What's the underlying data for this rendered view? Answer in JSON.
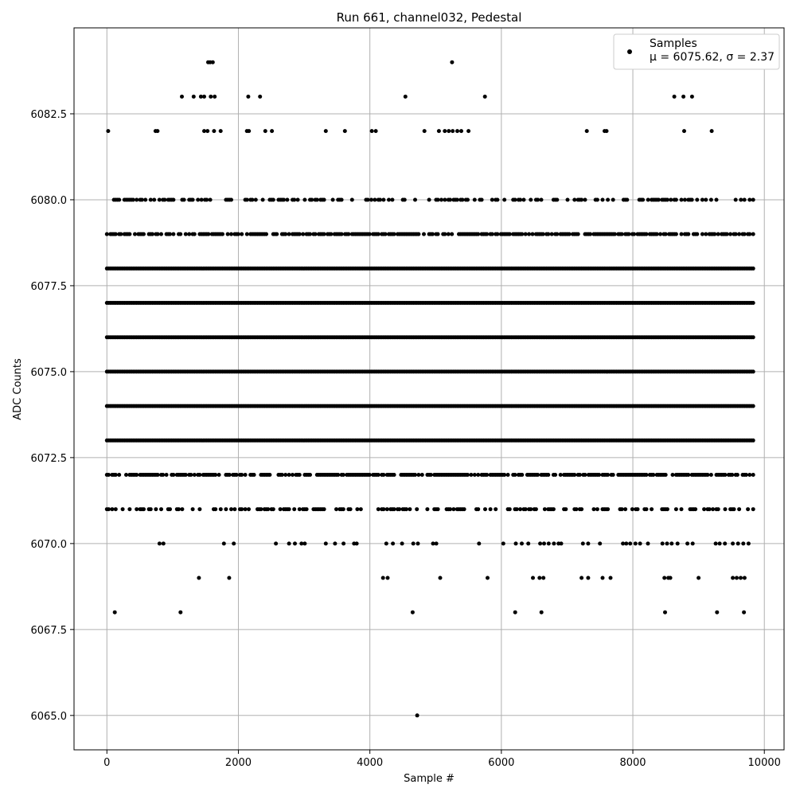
{
  "chart_data": {
    "type": "scatter",
    "title": "Run 661, channel032, Pedestal",
    "xlabel": "Sample #",
    "ylabel": "ADC Counts",
    "xlim": [
      -500,
      10300
    ],
    "ylim": [
      6064.0,
      6085.0
    ],
    "x_ticks": [
      0,
      2000,
      4000,
      6000,
      8000,
      10000
    ],
    "x_tick_labels": [
      "0",
      "2000",
      "4000",
      "6000",
      "8000",
      "10000"
    ],
    "y_ticks": [
      6065.0,
      6067.5,
      6070.0,
      6072.5,
      6075.0,
      6077.5,
      6080.0,
      6082.5
    ],
    "y_tick_labels": [
      "6065.0",
      "6067.5",
      "6070.0",
      "6072.5",
      "6075.0",
      "6077.5",
      "6080.0",
      "6082.5"
    ],
    "grid": true,
    "legend_position": "top-right",
    "marker_color": "#000000",
    "series": [
      {
        "name": "Samples",
        "stats_label": "μ = 6075.62, σ = 2.37",
        "x_range": [
          0,
          9830
        ],
        "levels": [
          {
            "y": 6071,
            "x_extent": [
              0,
              9830
            ]
          },
          {
            "y": 6072,
            "x_extent": [
              0,
              9830
            ]
          },
          {
            "y": 6073,
            "x_extent": [
              0,
              9830
            ]
          },
          {
            "y": 6074,
            "x_extent": [
              0,
              9830
            ]
          },
          {
            "y": 6075,
            "x_extent": [
              0,
              9830
            ]
          },
          {
            "y": 6076,
            "x_extent": [
              0,
              9830
            ]
          },
          {
            "y": 6077,
            "x_extent": [
              0,
              9830
            ]
          },
          {
            "y": 6078,
            "x_extent": [
              0,
              9830
            ]
          },
          {
            "y": 6079,
            "x_extent": [
              0,
              9830
            ]
          },
          {
            "y": 6080,
            "x_extent": [
              0,
              9830
            ]
          }
        ],
        "points": [
          [
            4720,
            6065
          ],
          [
            120,
            6068
          ],
          [
            1120,
            6068
          ],
          [
            4650,
            6068
          ],
          [
            6210,
            6068
          ],
          [
            6610,
            6068
          ],
          [
            8490,
            6068
          ],
          [
            9280,
            6068
          ],
          [
            9690,
            6068
          ],
          [
            1400,
            6069
          ],
          [
            1860,
            6069
          ],
          [
            4200,
            6069
          ],
          [
            4270,
            6069
          ],
          [
            5070,
            6069
          ],
          [
            5790,
            6069
          ],
          [
            6480,
            6069
          ],
          [
            6580,
            6069
          ],
          [
            6640,
            6069
          ],
          [
            7220,
            6069
          ],
          [
            7320,
            6069
          ],
          [
            7540,
            6069
          ],
          [
            7660,
            6069
          ],
          [
            8480,
            6069
          ],
          [
            8540,
            6069
          ],
          [
            8570,
            6069
          ],
          [
            9000,
            6069
          ],
          [
            9520,
            6069
          ],
          [
            9580,
            6069
          ],
          [
            9640,
            6069
          ],
          [
            9700,
            6069
          ],
          [
            800,
            6070
          ],
          [
            860,
            6070
          ],
          [
            1780,
            6070
          ],
          [
            1930,
            6070
          ],
          [
            2570,
            6070
          ],
          [
            2770,
            6070
          ],
          [
            2860,
            6070
          ],
          [
            2960,
            6070
          ],
          [
            3010,
            6070
          ],
          [
            3330,
            6070
          ],
          [
            3470,
            6070
          ],
          [
            3600,
            6070
          ],
          [
            3760,
            6070
          ],
          [
            3800,
            6070
          ],
          [
            4250,
            6070
          ],
          [
            4350,
            6070
          ],
          [
            4490,
            6070
          ],
          [
            4660,
            6070
          ],
          [
            4730,
            6070
          ],
          [
            4960,
            6070
          ],
          [
            5010,
            6070
          ],
          [
            5660,
            6070
          ],
          [
            6030,
            6070
          ],
          [
            6220,
            6070
          ],
          [
            6310,
            6070
          ],
          [
            6410,
            6070
          ],
          [
            6590,
            6070
          ],
          [
            6650,
            6070
          ],
          [
            6720,
            6070
          ],
          [
            6800,
            6070
          ],
          [
            6870,
            6070
          ],
          [
            6910,
            6070
          ],
          [
            7240,
            6070
          ],
          [
            7320,
            6070
          ],
          [
            7500,
            6070
          ],
          [
            7850,
            6070
          ],
          [
            7900,
            6070
          ],
          [
            7960,
            6070
          ],
          [
            8040,
            6070
          ],
          [
            8110,
            6070
          ],
          [
            8230,
            6070
          ],
          [
            8450,
            6070
          ],
          [
            8520,
            6070
          ],
          [
            8590,
            6070
          ],
          [
            8680,
            6070
          ],
          [
            8830,
            6070
          ],
          [
            8910,
            6070
          ],
          [
            9260,
            6070
          ],
          [
            9320,
            6070
          ],
          [
            9400,
            6070
          ],
          [
            9520,
            6070
          ],
          [
            9600,
            6070
          ],
          [
            9680,
            6070
          ],
          [
            9760,
            6070
          ],
          [
            20,
            6082
          ],
          [
            740,
            6082
          ],
          [
            770,
            6082
          ],
          [
            1480,
            6082
          ],
          [
            1530,
            6082
          ],
          [
            1630,
            6082
          ],
          [
            1730,
            6082
          ],
          [
            2130,
            6082
          ],
          [
            2160,
            6082
          ],
          [
            2410,
            6082
          ],
          [
            2510,
            6082
          ],
          [
            3330,
            6082
          ],
          [
            3620,
            6082
          ],
          [
            4030,
            6082
          ],
          [
            4090,
            6082
          ],
          [
            4830,
            6082
          ],
          [
            5050,
            6082
          ],
          [
            5140,
            6082
          ],
          [
            5200,
            6082
          ],
          [
            5260,
            6082
          ],
          [
            5330,
            6082
          ],
          [
            5390,
            6082
          ],
          [
            5500,
            6082
          ],
          [
            7300,
            6082
          ],
          [
            7570,
            6082
          ],
          [
            7600,
            6082
          ],
          [
            8780,
            6082
          ],
          [
            9200,
            6082
          ],
          [
            1140,
            6083
          ],
          [
            1320,
            6083
          ],
          [
            1430,
            6083
          ],
          [
            1480,
            6083
          ],
          [
            1580,
            6083
          ],
          [
            1640,
            6083
          ],
          [
            2150,
            6083
          ],
          [
            2330,
            6083
          ],
          [
            4540,
            6083
          ],
          [
            5750,
            6083
          ],
          [
            8630,
            6083
          ],
          [
            8770,
            6083
          ],
          [
            8900,
            6083
          ],
          [
            1540,
            6084
          ],
          [
            1570,
            6084
          ],
          [
            1610,
            6084
          ],
          [
            5250,
            6084
          ]
        ]
      }
    ]
  }
}
